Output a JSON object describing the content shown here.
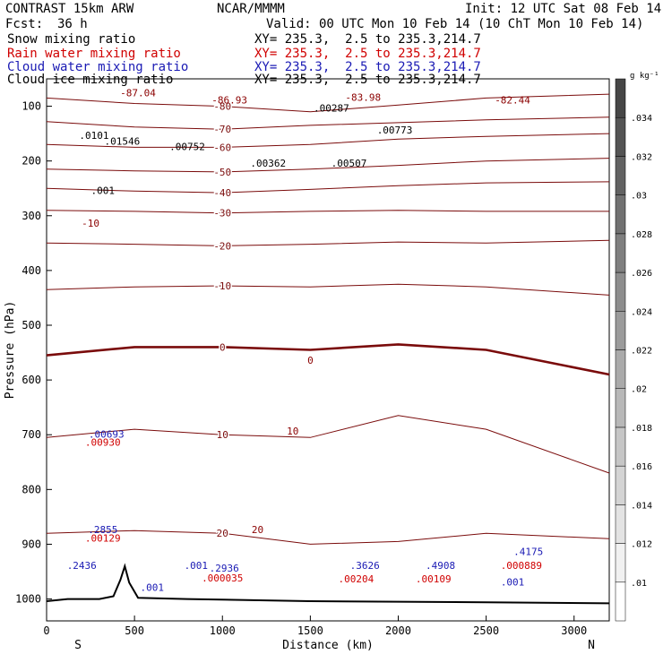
{
  "header": {
    "title": "CONTRAST 15km ARW",
    "org": "NCAR/MMMM",
    "init": "Init: 12 UTC Sat 08 Feb 14",
    "fcst_label": "Fcst:",
    "fcst_value": "36 h",
    "valid": "Valid: 00 UTC Mon 10 Feb 14 (10 ChT Mon 10 Feb 14)",
    "fields": [
      {
        "name": "Snow mixing ratio",
        "xy": "XY= 235.3,  2.5 to 235.3,214.7",
        "color": "#000000"
      },
      {
        "name": "Rain water mixing ratio",
        "xy": "XY= 235.3,  2.5 to 235.3,214.7",
        "color": "#d00000"
      },
      {
        "name": "Cloud water mixing ratio",
        "xy": "XY= 235.3,  2.5 to 235.3,214.7",
        "color": "#1a1ab4"
      },
      {
        "name": "Cloud ice mixing ratio",
        "xy": "XY= 235.3,  2.5 to 235.3,214.7",
        "color": "#000000"
      }
    ]
  },
  "chart_data": {
    "type": "cross-section",
    "xlabel": "Distance (km)",
    "ylabel": "Pressure (hPa)",
    "xlim": [
      0,
      3200
    ],
    "ylim": [
      1040,
      50
    ],
    "x_ticks": [
      0,
      500,
      1000,
      1500,
      2000,
      2500,
      3000
    ],
    "y_ticks": [
      100,
      200,
      300,
      400,
      500,
      600,
      700,
      800,
      900,
      1000
    ],
    "x_end_labels": {
      "left": "S",
      "right": "N"
    },
    "temperature_contours_C": [
      {
        "label": "-80",
        "pts": [
          [
            0,
            85
          ],
          [
            500,
            95
          ],
          [
            1000,
            100
          ],
          [
            1500,
            110
          ],
          [
            2000,
            98
          ],
          [
            2500,
            85
          ],
          [
            3200,
            78
          ]
        ]
      },
      {
        "label": "-70",
        "pts": [
          [
            0,
            128
          ],
          [
            500,
            138
          ],
          [
            1000,
            142
          ],
          [
            1500,
            135
          ],
          [
            2000,
            130
          ],
          [
            2500,
            125
          ],
          [
            3200,
            120
          ]
        ]
      },
      {
        "label": "-60",
        "pts": [
          [
            0,
            170
          ],
          [
            500,
            175
          ],
          [
            1000,
            175
          ],
          [
            1500,
            170
          ],
          [
            2000,
            160
          ],
          [
            2500,
            155
          ],
          [
            3200,
            150
          ]
        ]
      },
      {
        "label": "-50",
        "pts": [
          [
            0,
            215
          ],
          [
            500,
            218
          ],
          [
            1000,
            220
          ],
          [
            1500,
            215
          ],
          [
            2000,
            208
          ],
          [
            2500,
            200
          ],
          [
            3200,
            195
          ]
        ]
      },
      {
        "label": "-40",
        "pts": [
          [
            0,
            250
          ],
          [
            500,
            255
          ],
          [
            1000,
            258
          ],
          [
            1500,
            252
          ],
          [
            2000,
            245
          ],
          [
            2500,
            240
          ],
          [
            3200,
            238
          ]
        ]
      },
      {
        "label": "-30",
        "pts": [
          [
            0,
            290
          ],
          [
            500,
            292
          ],
          [
            1000,
            295
          ],
          [
            1500,
            292
          ],
          [
            2000,
            290
          ],
          [
            2500,
            292
          ],
          [
            3200,
            292
          ]
        ]
      },
      {
        "label": "-20",
        "pts": [
          [
            0,
            350
          ],
          [
            500,
            352
          ],
          [
            1000,
            355
          ],
          [
            1500,
            352
          ],
          [
            2000,
            348
          ],
          [
            2500,
            350
          ],
          [
            3200,
            345
          ]
        ]
      },
      {
        "label": "-10",
        "pts": [
          [
            0,
            435
          ],
          [
            500,
            430
          ],
          [
            1000,
            428
          ],
          [
            1500,
            430
          ],
          [
            2000,
            425
          ],
          [
            2500,
            430
          ],
          [
            3200,
            445
          ]
        ]
      },
      {
        "label": "0",
        "pts": [
          [
            0,
            555
          ],
          [
            500,
            540
          ],
          [
            1000,
            540
          ],
          [
            1500,
            545
          ],
          [
            2000,
            535
          ],
          [
            2500,
            545
          ],
          [
            3200,
            590
          ]
        ]
      },
      {
        "label": "10",
        "pts": [
          [
            0,
            705
          ],
          [
            500,
            690
          ],
          [
            1000,
            700
          ],
          [
            1500,
            705
          ],
          [
            2000,
            665
          ],
          [
            2500,
            690
          ],
          [
            3200,
            770
          ]
        ]
      },
      {
        "label": "20",
        "pts": [
          [
            0,
            880
          ],
          [
            500,
            875
          ],
          [
            1000,
            880
          ],
          [
            1500,
            900
          ],
          [
            2000,
            895
          ],
          [
            2500,
            880
          ],
          [
            3200,
            890
          ]
        ]
      }
    ],
    "labels": [
      {
        "x": 520,
        "p": 82,
        "text": "-87.04",
        "color": "#8b0000"
      },
      {
        "x": 1040,
        "p": 95,
        "text": "-86.93",
        "color": "#8b0000"
      },
      {
        "x": 1800,
        "p": 90,
        "text": "-83.98",
        "color": "#8b0000"
      },
      {
        "x": 2650,
        "p": 95,
        "text": "-82.44",
        "color": "#8b0000"
      },
      {
        "x": 250,
        "p": 320,
        "text": "-10",
        "color": "#8b0000"
      },
      {
        "x": 1500,
        "p": 570,
        "text": "0",
        "color": "#8b0000"
      },
      {
        "x": 1400,
        "p": 700,
        "text": "10",
        "color": "#8b0000"
      },
      {
        "x": 1200,
        "p": 880,
        "text": "20",
        "color": "#8b0000"
      },
      {
        "x": 270,
        "p": 160,
        "text": ".0101",
        "color": "#000000"
      },
      {
        "x": 430,
        "p": 170,
        "text": ".01546",
        "color": "#000000"
      },
      {
        "x": 800,
        "p": 180,
        "text": ".00752",
        "color": "#000000"
      },
      {
        "x": 1260,
        "p": 210,
        "text": ".00362",
        "color": "#000000"
      },
      {
        "x": 1620,
        "p": 110,
        "text": ".00287",
        "color": "#000000"
      },
      {
        "x": 1720,
        "p": 210,
        "text": ".00507",
        "color": "#000000"
      },
      {
        "x": 1980,
        "p": 150,
        "text": ".00773",
        "color": "#000000"
      },
      {
        "x": 320,
        "p": 260,
        "text": ".001",
        "color": "#000000"
      },
      {
        "x": 340,
        "p": 705,
        "text": ".00693",
        "color": "#1a1ab4"
      },
      {
        "x": 320,
        "p": 880,
        "text": ".2855",
        "color": "#1a1ab4"
      },
      {
        "x": 200,
        "p": 945,
        "text": ".2436",
        "color": "#1a1ab4"
      },
      {
        "x": 600,
        "p": 985,
        "text": ".001",
        "color": "#1a1ab4"
      },
      {
        "x": 850,
        "p": 945,
        "text": ".001",
        "color": "#1a1ab4"
      },
      {
        "x": 1010,
        "p": 950,
        "text": ".2936",
        "color": "#1a1ab4"
      },
      {
        "x": 1810,
        "p": 945,
        "text": ".3626",
        "color": "#1a1ab4"
      },
      {
        "x": 2240,
        "p": 945,
        "text": ".4908",
        "color": "#1a1ab4"
      },
      {
        "x": 2740,
        "p": 920,
        "text": ".4175",
        "color": "#1a1ab4"
      },
      {
        "x": 2650,
        "p": 975,
        "text": ".001",
        "color": "#1a1ab4"
      },
      {
        "x": 320,
        "p": 720,
        "text": ".00930",
        "color": "#d00000"
      },
      {
        "x": 320,
        "p": 895,
        "text": ".00129",
        "color": "#d00000"
      },
      {
        "x": 1000,
        "p": 968,
        "text": ".000035",
        "color": "#d00000"
      },
      {
        "x": 1760,
        "p": 970,
        "text": ".00204",
        "color": "#d00000"
      },
      {
        "x": 2200,
        "p": 970,
        "text": ".00109",
        "color": "#d00000"
      },
      {
        "x": 2700,
        "p": 945,
        "text": ".000889",
        "color": "#d00000"
      }
    ],
    "colorbar": {
      "unit": "g kg⁻¹",
      "ticks": [
        ".01",
        ".012",
        ".014",
        ".016",
        ".018",
        ".02",
        ".022",
        ".024",
        ".026",
        ".028",
        ".03",
        ".032",
        ".034"
      ]
    }
  }
}
